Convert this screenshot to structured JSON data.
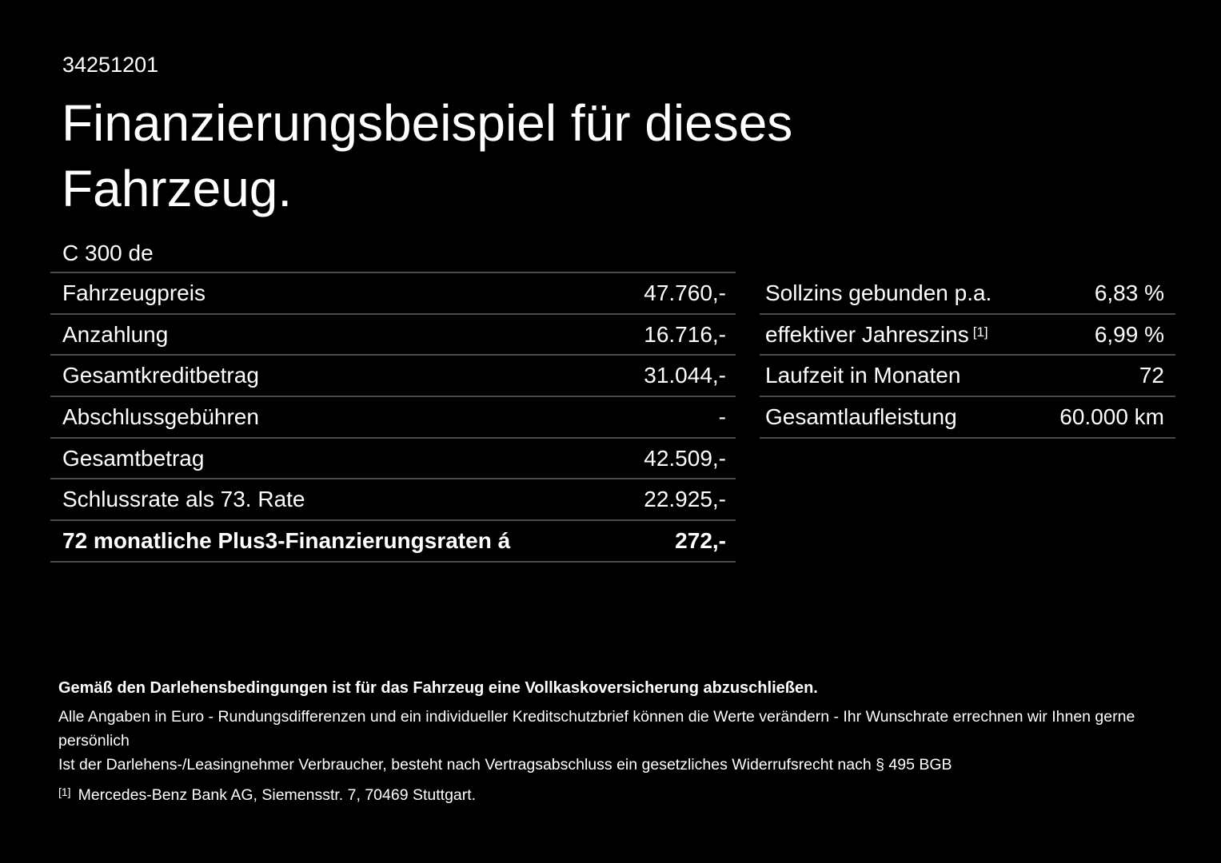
{
  "colors": {
    "background": "#000000",
    "text": "#ffffff",
    "divider": "#4a4a4a"
  },
  "header": {
    "doc_number": "34251201",
    "title_line1": "Finanzierungsbeispiel für dieses",
    "title_line2": "Fahrzeug.",
    "model": "C 300 de"
  },
  "finance_table": {
    "rows": [
      {
        "label": "Fahrzeugpreis",
        "value": "47.760,-",
        "bold": false
      },
      {
        "label": "Anzahlung",
        "value": "16.716,-",
        "bold": false
      },
      {
        "label": "Gesamtkreditbetrag",
        "value": "31.044,-",
        "bold": false
      },
      {
        "label": "Abschlussgebühren",
        "value": "-",
        "bold": false
      },
      {
        "label": "Gesamtbetrag",
        "value": "42.509,-",
        "bold": false
      },
      {
        "label": "Schlussrate als 73. Rate",
        "value": "22.925,-",
        "bold": false
      },
      {
        "label": "72 monatliche Plus3-Finanzierungsraten á",
        "value": "272,-",
        "bold": true
      }
    ]
  },
  "conditions_table": {
    "rows": [
      {
        "label": "Sollzins gebunden p.a.",
        "sup": "",
        "value": "6,83 %"
      },
      {
        "label": "effektiver Jahreszins",
        "sup": "[1]",
        "value": "6,99 %"
      },
      {
        "label": "Laufzeit in Monaten",
        "sup": "",
        "value": "72"
      },
      {
        "label": "Gesamtlaufleistung",
        "sup": "",
        "value": "60.000 km"
      }
    ]
  },
  "footer": {
    "insurance_note": "Gemäß den Darlehensbedingungen ist für das Fahrzeug eine Vollkaskoversicherung abzuschließen.",
    "disclaimer_line1": "Alle Angaben in Euro - Rundungsdifferenzen und ein individueller Kreditschutzbrief können die Werte verändern - Ihr Wunschrate errechnen wir Ihnen gerne persönlich",
    "disclaimer_line2": "Ist der Darlehens-/Leasingnehmer Verbraucher, besteht nach Vertragsabschluss ein gesetzliches Widerrufsrecht nach § 495 BGB",
    "footnote_marker": "[1]",
    "footnote_text": "Mercedes-Benz Bank AG, Siemensstr. 7, 70469 Stuttgart."
  }
}
